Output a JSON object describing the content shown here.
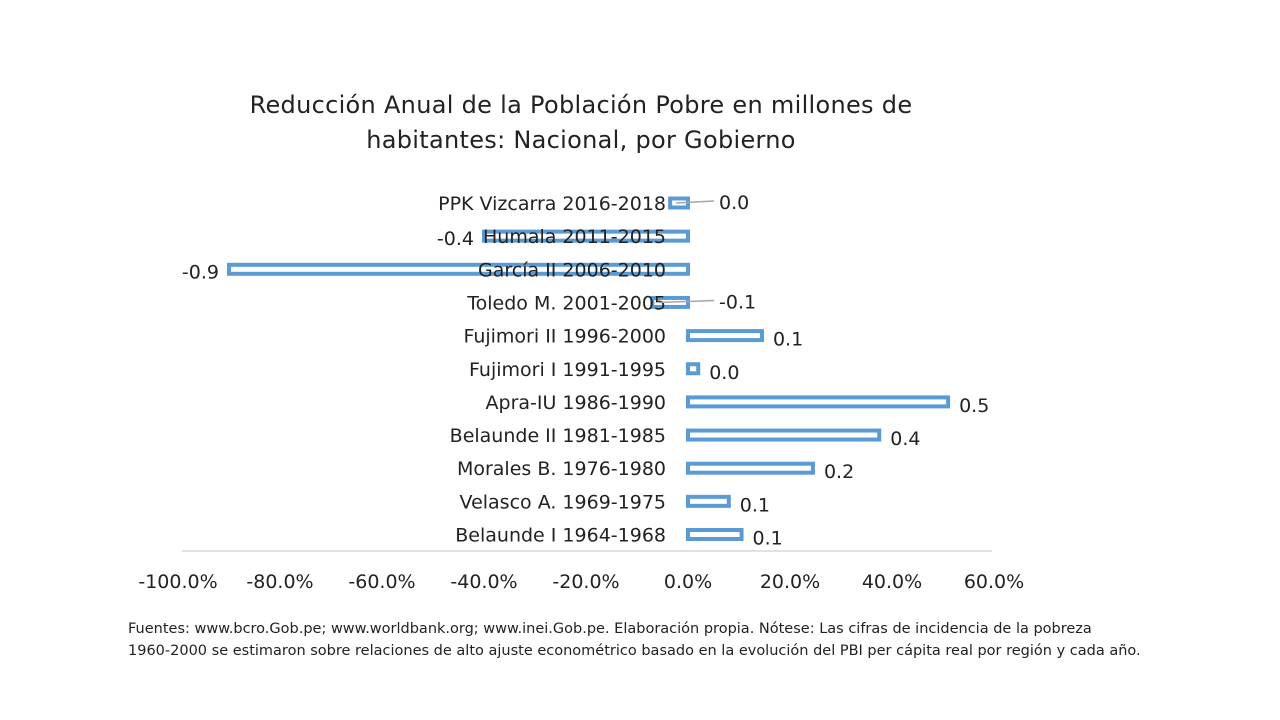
{
  "chart_title": {
    "line1": "Reducción Anual de la Población Pobre en millones de",
    "line2": "habitantes: Nacional, por Gobierno"
  },
  "chart_data": {
    "type": "bar",
    "orientation": "horizontal",
    "title": "Reducción Anual de la Población Pobre en millones de habitantes: Nacional, por Gobierno",
    "categories": [
      "PPK Vizcarra 2016-2018",
      "Humala 2011-2015",
      "García II 2006-2010",
      "Toledo M. 2001-2005",
      "Fujimori II 1996-2000",
      "Fujimori I 1991-1995",
      "Apra-IU 1986-1990",
      "Belaunde II 1981-1985",
      "Morales B. 1976-1980",
      "Velasco A. 1969-1975",
      "Belaunde I 1964-1968"
    ],
    "values_pct": [
      -3.5,
      -40.0,
      -90.0,
      -7.0,
      14.5,
      2.0,
      51.0,
      37.5,
      24.5,
      8.0,
      10.5
    ],
    "data_labels": [
      "0.0",
      "-0.4",
      "-0.9",
      "-0.1",
      "0.1",
      "0.0",
      "0.5",
      "0.4",
      "0.2",
      "0.1",
      "0.1"
    ],
    "xlim": [
      -100,
      60
    ],
    "x_ticks": [
      "-100.0%",
      "-80.0%",
      "-60.0%",
      "-40.0%",
      "-20.0%",
      "0.0%",
      "20.0%",
      "40.0%",
      "60.0%"
    ],
    "bar_color": "#5b9bd5",
    "grid": false
  },
  "footnote": {
    "line1": "Fuentes: www.bcro.Gob.pe; www.worldbank.org; www.inei.Gob.pe. Elaboración propia. Nótese: Las cifras de incidencia de la pobreza",
    "line2": "1960-2000 se estimaron sobre relaciones de alto ajuste econométrico basado en la evolución del PBI per cápita real por región y cada año."
  }
}
